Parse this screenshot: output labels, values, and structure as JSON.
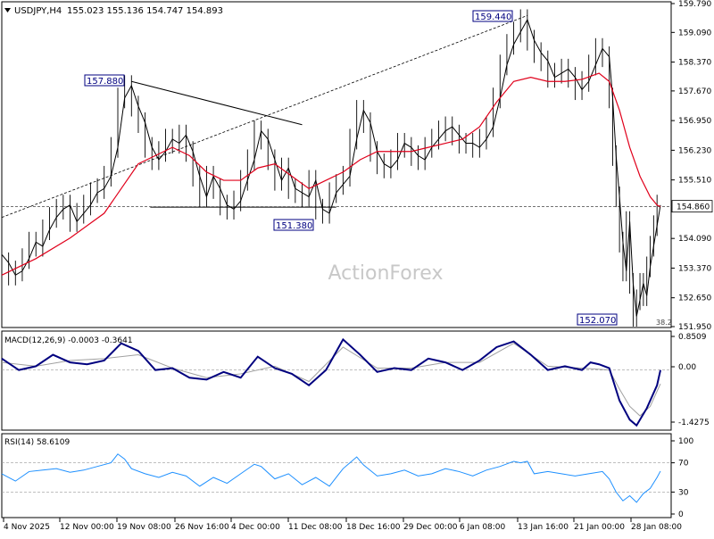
{
  "header": {
    "symbol": "USDJPY,H4",
    "ohlc": "155.023 155.136 154.747 154.893",
    "menu_icon": "triangle-down-icon"
  },
  "watermark": "ActionForex",
  "colors": {
    "price": "#000000",
    "ma": "#e0001b",
    "macd": "#00007f",
    "signal": "#a0a0a0",
    "rsi": "#1e90ff",
    "labelBorder": "#000080",
    "labelText": "#000080"
  },
  "chart_data": [
    {
      "type": "candlestick",
      "panel": "price",
      "title": "USDJPY,H4",
      "y_ticks": [
        "159.790",
        "159.090",
        "158.370",
        "157.670",
        "156.950",
        "156.230",
        "155.510",
        "154.090",
        "153.370",
        "152.650",
        "151.950"
      ],
      "ylim": [
        151.95,
        159.79
      ],
      "current_price": "154.860",
      "x_ticks": [
        "4 Nov 2025",
        "12 Nov 00:00",
        "19 Nov 08:00",
        "26 Nov 16:00",
        "4 Dec 00:00",
        "11 Dec 08:00",
        "18 Dec 16:00",
        "29 Dec 00:00",
        "6 Jan 08:00",
        "13 Jan 16:00",
        "21 Jan 00:00",
        "28 Jan 08:00"
      ],
      "annotations": [
        {
          "text": "157.880",
          "x": "19 Nov 08:00",
          "y": 157.88
        },
        {
          "text": "159.440",
          "x": "13 Jan 16:00",
          "y": 159.44
        },
        {
          "text": "151.380",
          "x": "11 Dec 08:00",
          "y": 151.38
        },
        {
          "text": "152.070",
          "x": "28 Jan 08:00",
          "y": 152.07
        },
        {
          "text": "38.2",
          "x": "28 Jan 08:00",
          "y": 152.07
        }
      ],
      "price_path": [
        [
          0,
          153.7
        ],
        [
          4,
          153.5
        ],
        [
          8,
          153.2
        ],
        [
          12,
          153.3
        ],
        [
          16,
          153.6
        ],
        [
          20,
          154.0
        ],
        [
          24,
          153.9
        ],
        [
          28,
          154.3
        ],
        [
          32,
          154.6
        ],
        [
          36,
          154.8
        ],
        [
          40,
          154.9
        ],
        [
          44,
          154.5
        ],
        [
          48,
          154.7
        ],
        [
          52,
          154.9
        ],
        [
          56,
          155.2
        ],
        [
          60,
          155.3
        ],
        [
          64,
          155.6
        ],
        [
          68,
          156.3
        ],
        [
          72,
          157.5
        ],
        [
          76,
          157.8
        ],
        [
          80,
          157.3
        ],
        [
          84,
          156.9
        ],
        [
          88,
          156.3
        ],
        [
          92,
          156.0
        ],
        [
          96,
          156.2
        ],
        [
          100,
          156.5
        ],
        [
          104,
          156.4
        ],
        [
          108,
          156.6
        ],
        [
          112,
          156.2
        ],
        [
          116,
          155.6
        ],
        [
          120,
          155.1
        ],
        [
          124,
          155.6
        ],
        [
          128,
          155.3
        ],
        [
          132,
          154.9
        ],
        [
          136,
          154.8
        ],
        [
          140,
          155.0
        ],
        [
          144,
          155.5
        ],
        [
          148,
          156.0
        ],
        [
          152,
          156.7
        ],
        [
          156,
          156.5
        ],
        [
          160,
          156.0
        ],
        [
          164,
          155.5
        ],
        [
          168,
          155.8
        ],
        [
          172,
          155.3
        ],
        [
          176,
          155.2
        ],
        [
          180,
          155.1
        ],
        [
          184,
          155.5
        ],
        [
          188,
          154.8
        ],
        [
          192,
          154.7
        ],
        [
          196,
          155.2
        ],
        [
          200,
          155.4
        ],
        [
          204,
          155.6
        ],
        [
          208,
          156.5
        ],
        [
          212,
          157.2
        ],
        [
          216,
          156.9
        ],
        [
          220,
          156.2
        ],
        [
          224,
          155.9
        ],
        [
          228,
          155.8
        ],
        [
          232,
          156.0
        ],
        [
          236,
          156.4
        ],
        [
          240,
          156.3
        ],
        [
          244,
          156.1
        ],
        [
          248,
          156.0
        ],
        [
          252,
          156.3
        ],
        [
          256,
          156.5
        ],
        [
          260,
          156.7
        ],
        [
          264,
          156.8
        ],
        [
          268,
          156.6
        ],
        [
          272,
          156.4
        ],
        [
          276,
          156.4
        ],
        [
          280,
          156.3
        ],
        [
          284,
          156.5
        ],
        [
          288,
          156.8
        ],
        [
          292,
          157.5
        ],
        [
          296,
          158.3
        ],
        [
          300,
          158.8
        ],
        [
          304,
          159.1
        ],
        [
          308,
          159.4
        ],
        [
          312,
          158.9
        ],
        [
          316,
          158.6
        ],
        [
          320,
          158.4
        ],
        [
          324,
          158.0
        ],
        [
          328,
          158.1
        ],
        [
          332,
          158.2
        ],
        [
          336,
          158.0
        ],
        [
          340,
          157.7
        ],
        [
          344,
          157.9
        ],
        [
          348,
          158.3
        ],
        [
          352,
          158.7
        ],
        [
          356,
          158.5
        ],
        [
          358,
          157.5
        ],
        [
          360,
          156.1
        ],
        [
          362,
          155.1
        ],
        [
          364,
          154.0
        ],
        [
          366,
          153.3
        ],
        [
          368,
          154.5
        ],
        [
          370,
          153.0
        ],
        [
          372,
          152.2
        ],
        [
          374,
          152.6
        ],
        [
          376,
          153.0
        ],
        [
          378,
          152.7
        ],
        [
          380,
          153.4
        ],
        [
          382,
          153.9
        ],
        [
          384,
          154.4
        ],
        [
          386,
          154.9
        ]
      ],
      "ma_path": [
        [
          0,
          153.2
        ],
        [
          20,
          153.6
        ],
        [
          40,
          154.1
        ],
        [
          60,
          154.7
        ],
        [
          70,
          155.3
        ],
        [
          80,
          155.9
        ],
        [
          90,
          156.1
        ],
        [
          100,
          156.3
        ],
        [
          110,
          156.1
        ],
        [
          120,
          155.7
        ],
        [
          130,
          155.5
        ],
        [
          140,
          155.5
        ],
        [
          150,
          155.8
        ],
        [
          160,
          155.9
        ],
        [
          170,
          155.6
        ],
        [
          180,
          155.3
        ],
        [
          190,
          155.5
        ],
        [
          200,
          155.7
        ],
        [
          210,
          156.0
        ],
        [
          220,
          156.2
        ],
        [
          230,
          156.2
        ],
        [
          240,
          156.2
        ],
        [
          250,
          156.3
        ],
        [
          260,
          156.4
        ],
        [
          270,
          156.5
        ],
        [
          280,
          156.8
        ],
        [
          290,
          157.4
        ],
        [
          300,
          157.9
        ],
        [
          310,
          158.0
        ],
        [
          320,
          157.9
        ],
        [
          330,
          157.9
        ],
        [
          340,
          157.95
        ],
        [
          350,
          158.1
        ],
        [
          356,
          157.9
        ],
        [
          362,
          157.2
        ],
        [
          368,
          156.3
        ],
        [
          374,
          155.6
        ],
        [
          380,
          155.1
        ],
        [
          384,
          154.9
        ],
        [
          386,
          154.86
        ]
      ]
    },
    {
      "type": "line",
      "panel": "macd",
      "title": "MACD(12,26,9) -0.0003 -0.3641",
      "y_ticks": [
        "0.8509",
        "0.00",
        "-1.4275"
      ],
      "ylim": [
        -1.55,
        0.95
      ],
      "series": [
        {
          "name": "MACD",
          "values": [
            [
              0,
              0.3
            ],
            [
              10,
              0.0
            ],
            [
              20,
              0.1
            ],
            [
              30,
              0.4
            ],
            [
              40,
              0.2
            ],
            [
              50,
              0.15
            ],
            [
              60,
              0.25
            ],
            [
              70,
              0.7
            ],
            [
              80,
              0.5
            ],
            [
              90,
              0.0
            ],
            [
              100,
              0.05
            ],
            [
              110,
              -0.2
            ],
            [
              120,
              -0.25
            ],
            [
              130,
              -0.05
            ],
            [
              140,
              -0.2
            ],
            [
              150,
              0.35
            ],
            [
              160,
              0.05
            ],
            [
              170,
              -0.1
            ],
            [
              180,
              -0.4
            ],
            [
              190,
              0.0
            ],
            [
              200,
              0.8
            ],
            [
              210,
              0.4
            ],
            [
              220,
              -0.05
            ],
            [
              230,
              0.05
            ],
            [
              240,
              0.0
            ],
            [
              250,
              0.3
            ],
            [
              260,
              0.2
            ],
            [
              270,
              0.0
            ],
            [
              280,
              0.25
            ],
            [
              290,
              0.6
            ],
            [
              300,
              0.75
            ],
            [
              310,
              0.4
            ],
            [
              320,
              0.0
            ],
            [
              330,
              0.1
            ],
            [
              340,
              0.0
            ],
            [
              345,
              0.2
            ],
            [
              350,
              0.15
            ],
            [
              356,
              0.05
            ],
            [
              362,
              -0.8
            ],
            [
              368,
              -1.3
            ],
            [
              372,
              -1.45
            ],
            [
              378,
              -1.0
            ],
            [
              384,
              -0.4
            ],
            [
              386,
              0.0
            ]
          ]
        },
        {
          "name": "Signal",
          "values": [
            [
              0,
              0.2
            ],
            [
              20,
              0.1
            ],
            [
              40,
              0.25
            ],
            [
              60,
              0.3
            ],
            [
              80,
              0.4
            ],
            [
              100,
              0.05
            ],
            [
              120,
              -0.2
            ],
            [
              140,
              -0.1
            ],
            [
              160,
              0.1
            ],
            [
              180,
              -0.3
            ],
            [
              200,
              0.6
            ],
            [
              220,
              0.05
            ],
            [
              240,
              0.05
            ],
            [
              260,
              0.2
            ],
            [
              280,
              0.2
            ],
            [
              300,
              0.7
            ],
            [
              320,
              0.1
            ],
            [
              340,
              0.05
            ],
            [
              356,
              0.0
            ],
            [
              362,
              -0.5
            ],
            [
              368,
              -0.95
            ],
            [
              374,
              -1.2
            ],
            [
              380,
              -0.95
            ],
            [
              386,
              -0.36
            ]
          ]
        }
      ]
    },
    {
      "type": "line",
      "panel": "rsi",
      "title": "RSI(14) 58.6109",
      "y_ticks": [
        "100",
        "70",
        "30",
        "0"
      ],
      "ylim": [
        0,
        100
      ],
      "series": [
        {
          "name": "RSI",
          "values": [
            [
              0,
              55
            ],
            [
              8,
              45
            ],
            [
              16,
              58
            ],
            [
              24,
              60
            ],
            [
              32,
              62
            ],
            [
              40,
              57
            ],
            [
              48,
              60
            ],
            [
              56,
              65
            ],
            [
              64,
              70
            ],
            [
              68,
              82
            ],
            [
              72,
              75
            ],
            [
              76,
              62
            ],
            [
              84,
              55
            ],
            [
              92,
              50
            ],
            [
              100,
              57
            ],
            [
              108,
              52
            ],
            [
              116,
              38
            ],
            [
              124,
              50
            ],
            [
              132,
              42
            ],
            [
              140,
              55
            ],
            [
              148,
              68
            ],
            [
              152,
              65
            ],
            [
              160,
              48
            ],
            [
              168,
              55
            ],
            [
              176,
              40
            ],
            [
              184,
              50
            ],
            [
              192,
              38
            ],
            [
              200,
              62
            ],
            [
              204,
              70
            ],
            [
              208,
              78
            ],
            [
              212,
              67
            ],
            [
              220,
              52
            ],
            [
              228,
              55
            ],
            [
              236,
              60
            ],
            [
              244,
              52
            ],
            [
              252,
              55
            ],
            [
              260,
              62
            ],
            [
              268,
              58
            ],
            [
              276,
              52
            ],
            [
              284,
              60
            ],
            [
              292,
              65
            ],
            [
              300,
              72
            ],
            [
              304,
              70
            ],
            [
              308,
              72
            ],
            [
              312,
              55
            ],
            [
              320,
              58
            ],
            [
              328,
              55
            ],
            [
              336,
              52
            ],
            [
              344,
              55
            ],
            [
              352,
              58
            ],
            [
              356,
              48
            ],
            [
              360,
              30
            ],
            [
              364,
              18
            ],
            [
              368,
              25
            ],
            [
              372,
              16
            ],
            [
              376,
              28
            ],
            [
              380,
              35
            ],
            [
              384,
              50
            ],
            [
              386,
              58.6
            ]
          ]
        }
      ]
    }
  ]
}
